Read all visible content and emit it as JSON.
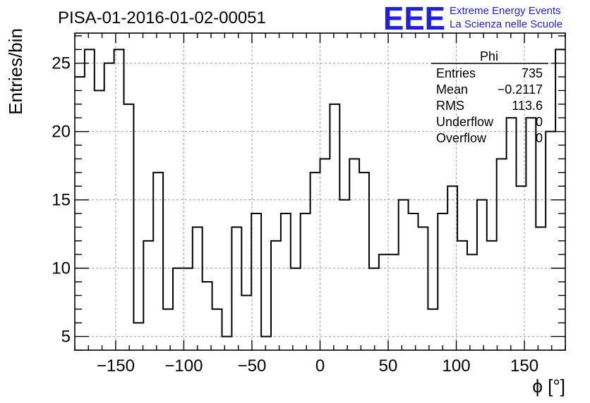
{
  "header": {
    "run_title": "PISA-01-2016-01-02-00051",
    "logo_text": "EEE",
    "logo_line1": "Extreme Energy Events",
    "logo_line2": "La Scienza nelle Scuole"
  },
  "stats": {
    "name": "Phi",
    "rows": [
      {
        "label": "Entries",
        "value": "735"
      },
      {
        "label": "Mean",
        "value": "−0.2117"
      },
      {
        "label": "RMS",
        "value": "113.6"
      },
      {
        "label": "Underflow",
        "value": "0"
      },
      {
        "label": "Overflow",
        "value": "0"
      }
    ]
  },
  "colors": {
    "logo": "#1f1fe0",
    "line": "#000000",
    "grid": "#a0a0a0"
  },
  "chart_data": {
    "type": "bar",
    "histogram_style": "step",
    "xlabel": "ϕ [°]",
    "ylabel": "Entries/bin",
    "xlim": [
      -180,
      180
    ],
    "ylim": [
      4,
      27.2
    ],
    "x_ticks": [
      -150,
      -100,
      -50,
      0,
      50,
      100,
      150
    ],
    "y_ticks": [
      5,
      10,
      15,
      20,
      25
    ],
    "grid": true,
    "bin_width": 7.2,
    "values": [
      24,
      26,
      23,
      25,
      26,
      22,
      6,
      12,
      17,
      7,
      10,
      10,
      13,
      9,
      7,
      5,
      13,
      8,
      14,
      5,
      12,
      14,
      10,
      14,
      17,
      18,
      22,
      15,
      18,
      17,
      10,
      11,
      11,
      15,
      14,
      13,
      7,
      14,
      16,
      12,
      11,
      15,
      12,
      18,
      21,
      16,
      21,
      13,
      20,
      26
    ]
  }
}
